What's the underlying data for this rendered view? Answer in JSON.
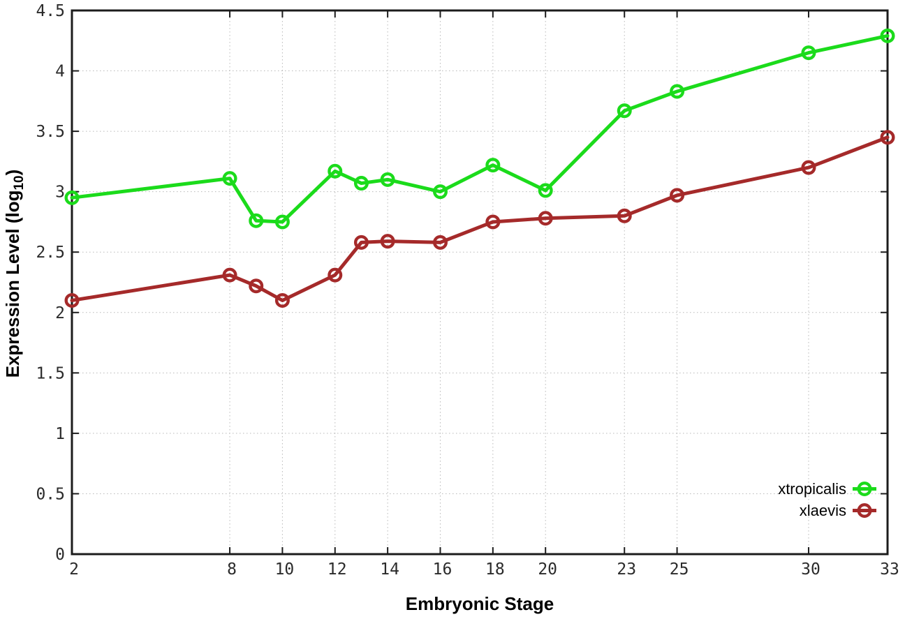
{
  "figure": {
    "background": "#ffffff",
    "border_color": "#1c1c1c",
    "grid_color": "#b8b8b8",
    "tick_color": "#1c1c1c",
    "tick_label_color": "#2b2b2b"
  },
  "chart_data": {
    "type": "line",
    "title": "",
    "xlabel": "Embryonic Stage",
    "ylabel": "Expression Level (log10)",
    "ylabel_parts": {
      "main": "Expression Level (log",
      "sub": "10",
      "close": ")"
    },
    "x": [
      2,
      8,
      9,
      10,
      12,
      13,
      14,
      16,
      18,
      20,
      23,
      25,
      30,
      33
    ],
    "x_ticks": [
      "2",
      "8",
      "10",
      "12",
      "14",
      "16",
      "18",
      "20",
      "23",
      "25",
      "30",
      "33"
    ],
    "x_tick_values": [
      2,
      8,
      10,
      12,
      14,
      16,
      18,
      20,
      23,
      25,
      30,
      33
    ],
    "y_ticks": [
      "0",
      "0.5",
      "1",
      "1.5",
      "2",
      "2.5",
      "3",
      "3.5",
      "4",
      "4.5"
    ],
    "y_tick_values": [
      0,
      0.5,
      1,
      1.5,
      2,
      2.5,
      3,
      3.5,
      4,
      4.5
    ],
    "xlim": [
      2,
      33
    ],
    "ylim": [
      0,
      4.5
    ],
    "grid": true,
    "grid_style": "dotted",
    "legend_position": "bottom-right-inside",
    "marker": "open-circle",
    "series": [
      {
        "name": "xtropicalis",
        "color": "#1bdb1b",
        "values": [
          2.95,
          3.11,
          2.76,
          2.75,
          3.17,
          3.07,
          3.1,
          3.0,
          3.22,
          3.01,
          3.67,
          3.83,
          4.15,
          4.29
        ]
      },
      {
        "name": "xlaevis",
        "color": "#a52a2a",
        "values": [
          2.1,
          2.31,
          2.22,
          2.1,
          2.31,
          2.58,
          2.59,
          2.58,
          2.75,
          2.78,
          2.8,
          2.97,
          3.2,
          3.45
        ]
      }
    ]
  }
}
